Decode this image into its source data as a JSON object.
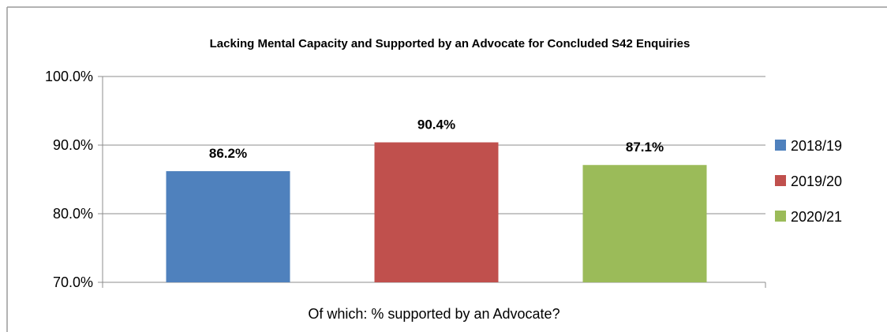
{
  "chart_data": {
    "type": "bar",
    "title": "Lacking Mental Capacity and Supported by an Advocate for Concluded S42 Enquiries",
    "xlabel": "Of which: % supported by an Advocate?",
    "ylabel": "",
    "ylim": [
      70,
      100
    ],
    "yticks": [
      70,
      80,
      90,
      100
    ],
    "ytick_labels": [
      "70.0%",
      "80.0%",
      "90.0%",
      "100.0%"
    ],
    "grid": true,
    "legend_position": "right",
    "series": [
      {
        "name": "2018/19",
        "value": 86.2,
        "label": "86.2%",
        "color": "#4F81BD"
      },
      {
        "name": "2019/20",
        "value": 90.4,
        "label": "90.4%",
        "color": "#C0504D"
      },
      {
        "name": "2020/21",
        "value": 87.1,
        "label": "87.1%",
        "color": "#9BBB59"
      }
    ]
  }
}
